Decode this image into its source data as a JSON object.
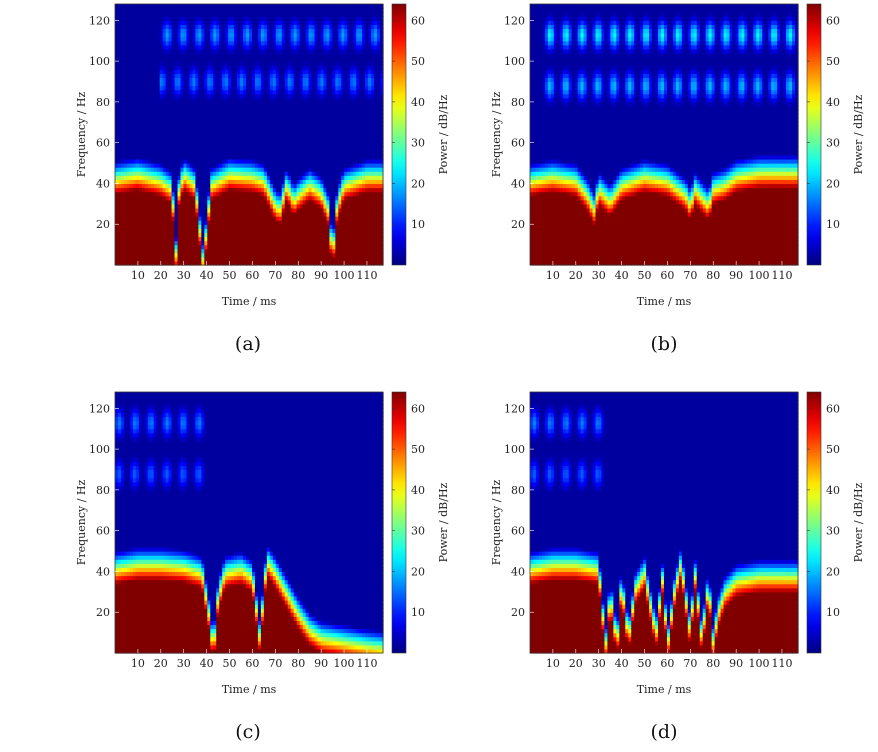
{
  "chart_data": [
    {
      "type": "heatmap",
      "panel": "(a)",
      "xlabel": "Time / ms",
      "ylabel": "Frequency / Hz",
      "colorbar_label": "Power / dB/Hz",
      "xlim": [
        0,
        117
      ],
      "ylim": [
        0,
        128
      ],
      "clim": [
        0,
        64
      ],
      "xticks": [
        10,
        20,
        30,
        40,
        50,
        60,
        70,
        80,
        90,
        100,
        110
      ],
      "yticks": [
        20,
        40,
        60,
        80,
        100,
        120
      ],
      "cticks": [
        10,
        20,
        30,
        40,
        50,
        60
      ],
      "background_power": 2,
      "band_bottom_power": 64,
      "band_edge_by_time": {
        "t": [
          0,
          10,
          20,
          25,
          26.5,
          28,
          30,
          35,
          38.5,
          42,
          50,
          60,
          65,
          70,
          72,
          75,
          78,
          80,
          85,
          90,
          93,
          95,
          97,
          100,
          110,
          117
        ],
        "edge_hz": [
          43,
          45,
          42,
          38,
          3,
          38,
          45,
          40,
          2,
          40,
          45,
          44,
          42,
          30,
          28,
          40,
          32,
          35,
          40,
          36,
          28,
          5,
          30,
          40,
          44,
          44
        ]
      },
      "harmonic_bands": [
        {
          "frequency_hz": 90,
          "power": 16,
          "time_range": [
            20,
            117
          ]
        },
        {
          "frequency_hz": 113,
          "power": 18,
          "time_range": [
            20,
            117
          ]
        }
      ]
    },
    {
      "type": "heatmap",
      "panel": "(b)",
      "xlabel": "Time / ms",
      "ylabel": "Frequency / Hz",
      "colorbar_label": "Power / dB/Hz",
      "xlim": [
        0,
        117
      ],
      "ylim": [
        0,
        128
      ],
      "clim": [
        0,
        64
      ],
      "xticks": [
        10,
        20,
        30,
        40,
        50,
        60,
        70,
        80,
        90,
        100,
        110
      ],
      "yticks": [
        20,
        40,
        60,
        80,
        100,
        120
      ],
      "cticks": [
        10,
        20,
        30,
        40,
        50,
        60
      ],
      "background_power": 2,
      "band_bottom_power": 64,
      "band_edge_by_time": {
        "t": [
          0,
          10,
          20,
          25,
          28,
          30,
          35,
          40,
          50,
          60,
          68,
          70,
          72,
          75,
          78,
          80,
          85,
          90,
          95,
          100,
          110,
          117
        ],
        "edge_hz": [
          42,
          44,
          42,
          35,
          28,
          38,
          32,
          40,
          44,
          42,
          35,
          30,
          38,
          34,
          30,
          38,
          40,
          44,
          45,
          46,
          46,
          46
        ]
      },
      "harmonic_bands": [
        {
          "frequency_hz": 88,
          "power": 20,
          "time_range": [
            5,
            117
          ]
        },
        {
          "frequency_hz": 113,
          "power": 24,
          "time_range": [
            5,
            117
          ]
        }
      ]
    },
    {
      "type": "heatmap",
      "panel": "(c)",
      "xlabel": "Time / ms",
      "ylabel": "Frequency / Hz",
      "colorbar_label": "Power / dB/Hz",
      "xlim": [
        0,
        117
      ],
      "ylim": [
        0,
        128
      ],
      "clim": [
        0,
        64
      ],
      "xticks": [
        10,
        20,
        30,
        40,
        50,
        60,
        70,
        80,
        90,
        100,
        110
      ],
      "yticks": [
        20,
        40,
        60,
        80,
        100,
        120
      ],
      "cticks": [
        10,
        20,
        30,
        40,
        50,
        60
      ],
      "background_power": 2,
      "band_bottom_power": 64,
      "band_edge_by_time": {
        "t": [
          0,
          10,
          20,
          30,
          38,
          41,
          43,
          45,
          48,
          55,
          60,
          62,
          63.5,
          65,
          67,
          70,
          75,
          80,
          85,
          90,
          100,
          110,
          117
        ],
        "edge_hz": [
          42,
          44,
          44,
          43,
          40,
          20,
          2,
          28,
          40,
          42,
          38,
          20,
          5,
          35,
          45,
          40,
          30,
          20,
          12,
          8,
          6,
          4,
          3
        ]
      },
      "harmonic_bands": [
        {
          "frequency_hz": 88,
          "power": 14,
          "time_range": [
            0,
            40
          ]
        },
        {
          "frequency_hz": 113,
          "power": 16,
          "time_range": [
            0,
            40
          ]
        }
      ]
    },
    {
      "type": "heatmap",
      "panel": "(d)",
      "xlabel": "Time / ms",
      "ylabel": "Frequency / Hz",
      "colorbar_label": "Power / dB/Hz",
      "xlim": [
        0,
        117
      ],
      "ylim": [
        0,
        128
      ],
      "clim": [
        0,
        64
      ],
      "xticks": [
        10,
        20,
        30,
        40,
        50,
        60,
        70,
        80,
        90,
        100,
        110
      ],
      "yticks": [
        20,
        40,
        60,
        80,
        100,
        120
      ],
      "cticks": [
        10,
        20,
        30,
        40,
        50,
        60
      ],
      "background_power": 2,
      "band_bottom_power": 64,
      "band_edge_by_time": {
        "t": [
          0,
          10,
          20,
          30,
          33,
          35,
          38,
          40,
          43,
          46,
          50,
          55,
          58,
          60,
          63,
          66,
          70,
          72,
          75,
          78,
          80,
          82,
          85,
          90,
          100,
          110,
          117
        ],
        "edge_hz": [
          42,
          44,
          44,
          42,
          4,
          30,
          5,
          35,
          8,
          32,
          40,
          10,
          38,
          4,
          30,
          45,
          10,
          40,
          8,
          35,
          6,
          20,
          30,
          36,
          38,
          38,
          38
        ]
      },
      "harmonic_bands": [
        {
          "frequency_hz": 88,
          "power": 14,
          "time_range": [
            0,
            32
          ]
        },
        {
          "frequency_hz": 113,
          "power": 16,
          "time_range": [
            0,
            32
          ]
        }
      ]
    }
  ]
}
